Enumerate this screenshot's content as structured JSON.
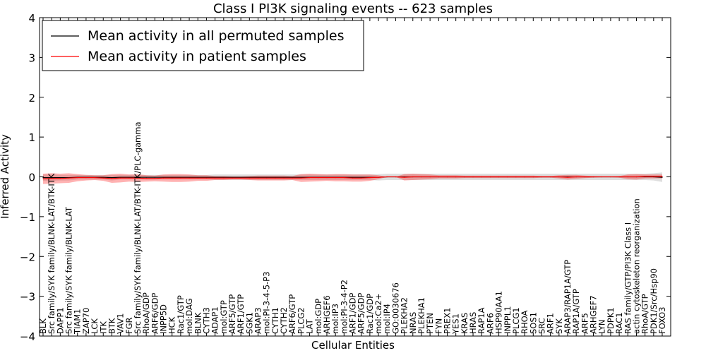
{
  "chart_data": {
    "type": "line",
    "title": "Class I PI3K signaling events -- 623 samples",
    "xlabel": "Cellular Entities",
    "ylabel": "Inferred Activity",
    "ylim": [
      -4,
      4
    ],
    "yticks": [
      -4,
      -3,
      -2,
      -1,
      0,
      1,
      2,
      3,
      4
    ],
    "grid": false,
    "legend_position": "top-left",
    "categories": [
      "BLK",
      "Src family/SYK family/BLNK-LAT/BTK-ITK",
      "DAPP1",
      "Src family/SYK family/BLNK-LAT",
      "TIAM1",
      "ZAP70",
      "LCK",
      "ITK",
      "BTK",
      "VAV1",
      "FGR",
      "Src family/SYK family/BLNK-LAT/BTK-ITK/PLC-gamma",
      "RhoA/GDP",
      "ARF6/GDP",
      "INPP5D",
      "HCK",
      "Rac1/GTP",
      "mol:DAG",
      "BLNK",
      "CYTH3",
      "ADAP1",
      "mol:GTP",
      "ARF5/GTP",
      "ARF1/GTP",
      "SGK1",
      "ARAP3",
      "mol:PI-3-4-5-P3",
      "CYTH1",
      "CYTH2",
      "ARF6/GTP",
      "PLCG2",
      "LAT",
      "mol:GDP",
      "ARHGEF6",
      "mol:IP3",
      "mol:PI-3-4-P2",
      "ARF1/GDP",
      "ARF5/GDP",
      "Rac1/GDP",
      "mol:Ca2+",
      "mol:IP4",
      "GO:0030676",
      "PLEKHA2",
      "NRAS",
      "PLEKHA1",
      "PTEN",
      "FYN",
      "PREX1",
      "YES1",
      "KRAS",
      "HRAS",
      "RAP1A",
      "ARF6",
      "HSP90AA1",
      "INPPL1",
      "PLCG1",
      "RHOA",
      "SOS1",
      "SRC",
      "ARF1",
      "SYK",
      "ARAP3/RAP1A/GTP",
      "RAP1A/GTP",
      "ARF5",
      "ARHGEF7",
      "LYN",
      "PDPK1",
      "RAC1",
      "RAS family/GTP/PI3K Class I",
      "actin cytoskeleton reorganization",
      "RhoA/GTP",
      "PDK1/Src/Hsp90",
      "FOXO3"
    ],
    "series": [
      {
        "name": "Mean activity in all permuted samples",
        "color": "#000000",
        "values": [
          -0.02,
          -0.02,
          -0.02,
          -0.02,
          -0.01,
          -0.01,
          -0.01,
          -0.01,
          -0.02,
          -0.01,
          -0.01,
          -0.01,
          -0.01,
          -0.01,
          -0.01,
          -0.01,
          -0.01,
          -0.01,
          -0.01,
          -0.01,
          -0.01,
          -0.01,
          -0.01,
          -0.01,
          -0.01,
          -0.01,
          -0.01,
          -0.01,
          -0.01,
          -0.01,
          -0.01,
          -0.01,
          -0.01,
          -0.01,
          -0.01,
          -0.01,
          -0.01,
          -0.01,
          -0.01,
          -0.01,
          0.0,
          0.0,
          0.0,
          0.0,
          0.0,
          0.0,
          0.0,
          0.0,
          0.0,
          0.0,
          0.0,
          0.0,
          0.0,
          0.0,
          0.0,
          0.0,
          0.0,
          0.0,
          0.0,
          0.0,
          0.0,
          0.0,
          0.0,
          0.0,
          0.0,
          0.0,
          0.0,
          0.0,
          0.0,
          0.0,
          0.0,
          0.0,
          -0.01
        ],
        "band": [
          0.08,
          0.08,
          0.07,
          0.07,
          0.06,
          0.06,
          0.06,
          0.06,
          0.07,
          0.06,
          0.06,
          0.06,
          0.06,
          0.06,
          0.06,
          0.06,
          0.06,
          0.06,
          0.06,
          0.06,
          0.07,
          0.07,
          0.07,
          0.07,
          0.07,
          0.07,
          0.07,
          0.07,
          0.07,
          0.07,
          0.07,
          0.07,
          0.07,
          0.07,
          0.07,
          0.07,
          0.07,
          0.07,
          0.07,
          0.08,
          0.08,
          0.08,
          0.08,
          0.08,
          0.08,
          0.08,
          0.08,
          0.08,
          0.08,
          0.08,
          0.08,
          0.08,
          0.08,
          0.08,
          0.08,
          0.08,
          0.08,
          0.08,
          0.08,
          0.08,
          0.08,
          0.08,
          0.08,
          0.08,
          0.08,
          0.08,
          0.08,
          0.08,
          0.08,
          0.08,
          0.08,
          0.09,
          0.12
        ]
      },
      {
        "name": "Mean activity in patient samples",
        "color": "#ff0000",
        "values": [
          -0.05,
          -0.04,
          -0.04,
          -0.03,
          -0.02,
          -0.02,
          -0.02,
          -0.03,
          -0.04,
          -0.03,
          -0.03,
          -0.03,
          -0.04,
          -0.04,
          -0.03,
          -0.03,
          -0.03,
          -0.03,
          -0.03,
          -0.03,
          -0.03,
          -0.03,
          -0.03,
          -0.03,
          -0.03,
          -0.03,
          -0.03,
          -0.03,
          -0.03,
          -0.03,
          -0.03,
          -0.02,
          -0.02,
          -0.02,
          -0.02,
          -0.02,
          -0.03,
          -0.03,
          -0.02,
          -0.01,
          0.0,
          0.0,
          -0.01,
          0.0,
          0.0,
          0.0,
          0.0,
          0.0,
          0.0,
          0.0,
          0.0,
          0.0,
          0.0,
          0.0,
          0.0,
          0.0,
          0.0,
          0.0,
          0.0,
          0.0,
          0.0,
          -0.01,
          0.0,
          0.0,
          0.0,
          0.0,
          0.0,
          0.0,
          0.0,
          0.0,
          0.01,
          0.01,
          0.01
        ],
        "band": [
          0.13,
          0.13,
          0.12,
          0.12,
          0.09,
          0.07,
          0.06,
          0.07,
          0.11,
          0.11,
          0.09,
          0.1,
          0.08,
          0.07,
          0.09,
          0.1,
          0.1,
          0.09,
          0.07,
          0.07,
          0.05,
          0.05,
          0.04,
          0.04,
          0.05,
          0.06,
          0.06,
          0.06,
          0.06,
          0.05,
          0.1,
          0.1,
          0.09,
          0.08,
          0.09,
          0.09,
          0.09,
          0.09,
          0.08,
          0.05,
          0.0,
          0.0,
          0.08,
          0.08,
          0.07,
          0.06,
          0.04,
          0.04,
          0.04,
          0.03,
          0.03,
          0.03,
          0.03,
          0.03,
          0.03,
          0.03,
          0.03,
          0.03,
          0.02,
          0.02,
          0.04,
          0.06,
          0.05,
          0.03,
          0.02,
          0.01,
          0.01,
          0.02,
          0.06,
          0.07,
          0.05,
          0.05,
          0.05
        ]
      }
    ]
  }
}
